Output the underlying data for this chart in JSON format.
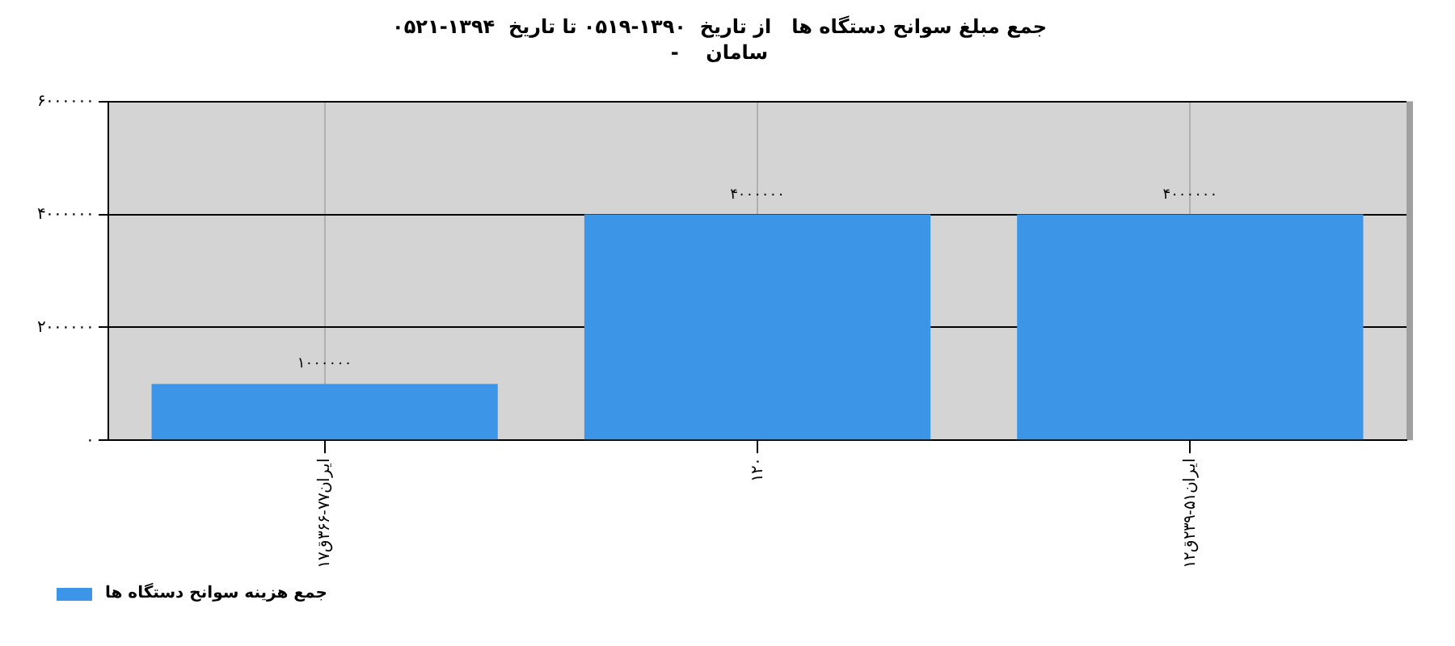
{
  "chart_data": {
    "type": "bar",
    "title": "جمع مبلغ سوانح دستگاه ها   از تاریخ  ۱۳۹۰-۰۵۱۹ تا تاریخ  ۱۳۹۴-۰۵۲۱",
    "subtitle": "-    سامان",
    "categories": [
      "ایران۷۷-۳۶۶ق۱۷",
      "۱۲۰",
      "ایران۵۱-۲۳۹ق۱۲"
    ],
    "series": [
      {
        "name": "جمع هزینه سوانح دستگاه ها",
        "color": "#3d95e8",
        "values": [
          1000000,
          4000000,
          4000000
        ],
        "value_labels": [
          "۱۰۰۰۰۰۰",
          "۴۰۰۰۰۰۰",
          "۴۰۰۰۰۰۰"
        ]
      }
    ],
    "ylim": [
      0,
      6000000
    ],
    "yticks": [
      {
        "value": 0,
        "label": "۰"
      },
      {
        "value": 2000000,
        "label": "۲۰۰۰۰۰۰"
      },
      {
        "value": 4000000,
        "label": "۴۰۰۰۰۰۰"
      },
      {
        "value": 6000000,
        "label": "۶۰۰۰۰۰۰"
      }
    ],
    "grid": true,
    "legend": "bottom left"
  }
}
